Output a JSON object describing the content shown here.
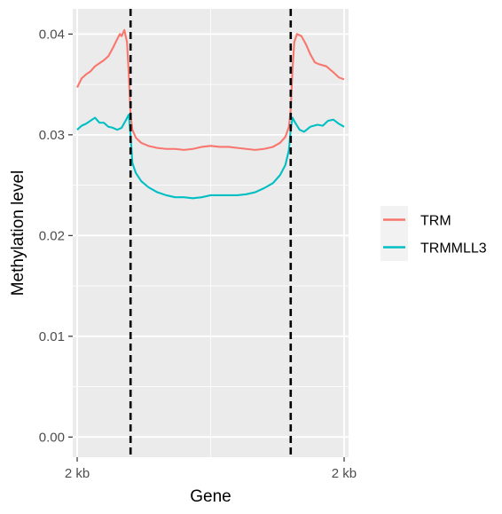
{
  "chart_data": {
    "type": "line",
    "xlabel": "Gene",
    "ylabel": "Methylation level",
    "x_tick_labels": [
      "2 kb",
      "2 kb"
    ],
    "y_ticks": [
      0.0,
      0.01,
      0.02,
      0.03,
      0.04
    ],
    "y_tick_labels": [
      "0.00",
      "0.01",
      "0.02",
      "0.03",
      "0.04"
    ],
    "ylim": [
      -0.002,
      0.0425
    ],
    "xlim": [
      -0.05,
      3.05
    ],
    "x_tick_positions": [
      0,
      3
    ],
    "gene_boundaries": [
      0.6,
      2.4
    ],
    "grid": true,
    "legend_position": "right",
    "series": [
      {
        "name": "TRM",
        "color": "#F8766D",
        "points": [
          [
            0.0,
            0.0347
          ],
          [
            0.05,
            0.0356
          ],
          [
            0.1,
            0.036
          ],
          [
            0.15,
            0.0363
          ],
          [
            0.2,
            0.0368
          ],
          [
            0.25,
            0.0371
          ],
          [
            0.3,
            0.0374
          ],
          [
            0.35,
            0.0378
          ],
          [
            0.4,
            0.0386
          ],
          [
            0.45,
            0.0395
          ],
          [
            0.48,
            0.04
          ],
          [
            0.5,
            0.0398
          ],
          [
            0.53,
            0.0404
          ],
          [
            0.56,
            0.0392
          ],
          [
            0.58,
            0.036
          ],
          [
            0.6,
            0.032
          ],
          [
            0.62,
            0.0305
          ],
          [
            0.66,
            0.0297
          ],
          [
            0.72,
            0.0292
          ],
          [
            0.8,
            0.0289
          ],
          [
            0.9,
            0.0287
          ],
          [
            1.0,
            0.0286
          ],
          [
            1.1,
            0.0286
          ],
          [
            1.2,
            0.0285
          ],
          [
            1.3,
            0.0286
          ],
          [
            1.4,
            0.0288
          ],
          [
            1.5,
            0.0289
          ],
          [
            1.6,
            0.0288
          ],
          [
            1.7,
            0.0288
          ],
          [
            1.8,
            0.0287
          ],
          [
            1.9,
            0.0286
          ],
          [
            2.0,
            0.0285
          ],
          [
            2.1,
            0.0286
          ],
          [
            2.2,
            0.0288
          ],
          [
            2.28,
            0.0292
          ],
          [
            2.34,
            0.0298
          ],
          [
            2.38,
            0.0308
          ],
          [
            2.4,
            0.0325
          ],
          [
            2.42,
            0.0365
          ],
          [
            2.44,
            0.0392
          ],
          [
            2.47,
            0.04
          ],
          [
            2.52,
            0.0398
          ],
          [
            2.57,
            0.039
          ],
          [
            2.62,
            0.038
          ],
          [
            2.67,
            0.0372
          ],
          [
            2.72,
            0.037
          ],
          [
            2.8,
            0.0368
          ],
          [
            2.88,
            0.0362
          ],
          [
            2.94,
            0.0357
          ],
          [
            3.0,
            0.0355
          ]
        ]
      },
      {
        "name": "TRMMLL3",
        "color": "#00BFC4",
        "points": [
          [
            0.0,
            0.0305
          ],
          [
            0.05,
            0.0309
          ],
          [
            0.1,
            0.0311
          ],
          [
            0.15,
            0.0314
          ],
          [
            0.2,
            0.0317
          ],
          [
            0.25,
            0.0312
          ],
          [
            0.3,
            0.0312
          ],
          [
            0.35,
            0.0308
          ],
          [
            0.4,
            0.0307
          ],
          [
            0.45,
            0.0305
          ],
          [
            0.5,
            0.0307
          ],
          [
            0.55,
            0.0315
          ],
          [
            0.58,
            0.032
          ],
          [
            0.6,
            0.03
          ],
          [
            0.62,
            0.0272
          ],
          [
            0.66,
            0.0262
          ],
          [
            0.72,
            0.0254
          ],
          [
            0.8,
            0.0248
          ],
          [
            0.9,
            0.0243
          ],
          [
            1.0,
            0.024
          ],
          [
            1.1,
            0.0238
          ],
          [
            1.2,
            0.0238
          ],
          [
            1.3,
            0.0237
          ],
          [
            1.4,
            0.0238
          ],
          [
            1.5,
            0.024
          ],
          [
            1.6,
            0.024
          ],
          [
            1.7,
            0.024
          ],
          [
            1.8,
            0.024
          ],
          [
            1.9,
            0.0241
          ],
          [
            2.0,
            0.0243
          ],
          [
            2.1,
            0.0247
          ],
          [
            2.2,
            0.0252
          ],
          [
            2.28,
            0.026
          ],
          [
            2.34,
            0.027
          ],
          [
            2.38,
            0.0285
          ],
          [
            2.4,
            0.0305
          ],
          [
            2.42,
            0.0317
          ],
          [
            2.45,
            0.0312
          ],
          [
            2.5,
            0.0305
          ],
          [
            2.55,
            0.0303
          ],
          [
            2.62,
            0.0308
          ],
          [
            2.7,
            0.031
          ],
          [
            2.76,
            0.0309
          ],
          [
            2.82,
            0.0314
          ],
          [
            2.88,
            0.0315
          ],
          [
            2.94,
            0.0311
          ],
          [
            3.0,
            0.0308
          ]
        ]
      }
    ]
  }
}
